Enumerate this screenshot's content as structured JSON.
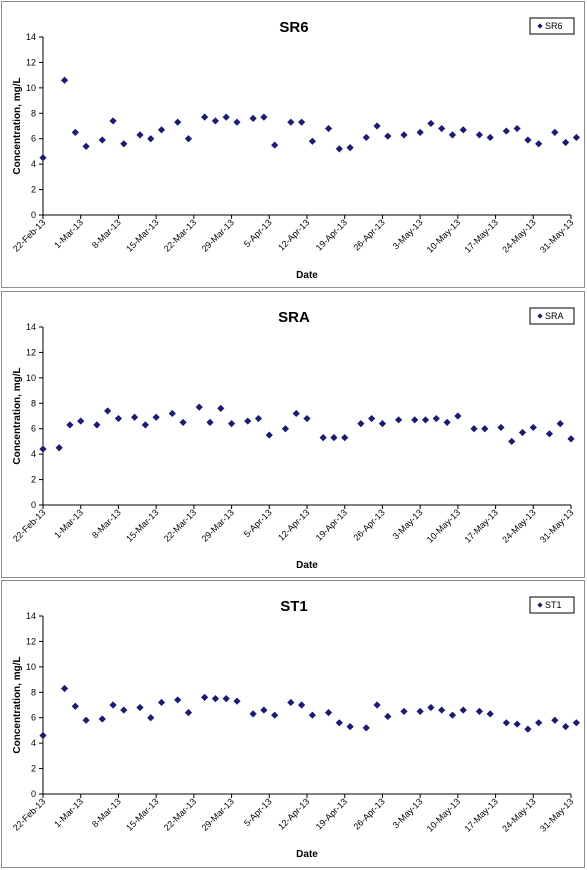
{
  "chart_data": [
    {
      "type": "scatter",
      "title": "SR6",
      "xlabel": "Date",
      "ylabel": "Concentration, mg/L",
      "ylim": [
        0,
        14
      ],
      "yticks": [
        "0",
        "2",
        "4",
        "6",
        "8",
        "10",
        "12",
        "14"
      ],
      "xlim": [
        "2013-02-22",
        "2013-05-31"
      ],
      "xticks": [
        "22-Feb-13",
        "1-Mar-13",
        "8-Mar-13",
        "15-Mar-13",
        "22-Mar-13",
        "29-Mar-13",
        "5-Apr-13",
        "12-Apr-13",
        "19-Apr-13",
        "26-Apr-13",
        "3-May-13",
        "10-May-13",
        "17-May-13",
        "24-May-13",
        "31-May-13"
      ],
      "grid": false,
      "legend_position": "top-right",
      "series": [
        {
          "name": "SR6",
          "color": "#1a1a7a",
          "marker": "diamond",
          "points": [
            [
              "2013-02-22",
              4.5
            ],
            [
              "2013-02-26",
              10.6
            ],
            [
              "2013-02-28",
              6.5
            ],
            [
              "2013-03-02",
              5.4
            ],
            [
              "2013-03-05",
              5.9
            ],
            [
              "2013-03-07",
              7.4
            ],
            [
              "2013-03-09",
              5.6
            ],
            [
              "2013-03-12",
              6.3
            ],
            [
              "2013-03-14",
              6.0
            ],
            [
              "2013-03-16",
              6.7
            ],
            [
              "2013-03-19",
              7.3
            ],
            [
              "2013-03-21",
              6.0
            ],
            [
              "2013-03-24",
              7.7
            ],
            [
              "2013-03-26",
              7.4
            ],
            [
              "2013-03-28",
              7.7
            ],
            [
              "2013-03-30",
              7.3
            ],
            [
              "2013-04-02",
              7.6
            ],
            [
              "2013-04-04",
              7.7
            ],
            [
              "2013-04-06",
              5.5
            ],
            [
              "2013-04-09",
              7.3
            ],
            [
              "2013-04-11",
              7.3
            ],
            [
              "2013-04-13",
              5.8
            ],
            [
              "2013-04-16",
              6.8
            ],
            [
              "2013-04-18",
              5.2
            ],
            [
              "2013-04-20",
              5.3
            ],
            [
              "2013-04-23",
              6.1
            ],
            [
              "2013-04-25",
              7.0
            ],
            [
              "2013-04-27",
              6.2
            ],
            [
              "2013-04-30",
              6.3
            ],
            [
              "2013-05-03",
              6.5
            ],
            [
              "2013-05-05",
              7.2
            ],
            [
              "2013-05-07",
              6.8
            ],
            [
              "2013-05-09",
              6.3
            ],
            [
              "2013-05-11",
              6.7
            ],
            [
              "2013-05-14",
              6.3
            ],
            [
              "2013-05-16",
              6.1
            ],
            [
              "2013-05-19",
              6.6
            ],
            [
              "2013-05-21",
              6.8
            ],
            [
              "2013-05-23",
              5.9
            ],
            [
              "2013-05-25",
              5.6
            ],
            [
              "2013-05-28",
              6.5
            ],
            [
              "2013-05-30",
              5.7
            ],
            [
              "2013-06-01",
              6.1
            ]
          ]
        }
      ]
    },
    {
      "type": "scatter",
      "title": "SRA",
      "xlabel": "Date",
      "ylabel": "Concentration, mg/L",
      "ylim": [
        0,
        14
      ],
      "yticks": [
        "0",
        "2",
        "4",
        "6",
        "8",
        "10",
        "12",
        "14"
      ],
      "xlim": [
        "2013-02-22",
        "2013-05-31"
      ],
      "xticks": [
        "22-Feb-13",
        "1-Mar-13",
        "8-Mar-13",
        "15-Mar-13",
        "22-Mar-13",
        "29-Mar-13",
        "5-Apr-13",
        "12-Apr-13",
        "19-Apr-13",
        "26-Apr-13",
        "3-May-13",
        "10-May-13",
        "17-May-13",
        "24-May-13",
        "31-May-13"
      ],
      "grid": false,
      "legend_position": "top-right",
      "series": [
        {
          "name": "SRA",
          "color": "#1a1a7a",
          "marker": "diamond",
          "points": [
            [
              "2013-02-22",
              4.4
            ],
            [
              "2013-02-25",
              4.5
            ],
            [
              "2013-02-27",
              6.3
            ],
            [
              "2013-03-01",
              6.6
            ],
            [
              "2013-03-04",
              6.3
            ],
            [
              "2013-03-06",
              7.4
            ],
            [
              "2013-03-08",
              6.8
            ],
            [
              "2013-03-11",
              6.9
            ],
            [
              "2013-03-13",
              6.3
            ],
            [
              "2013-03-15",
              6.9
            ],
            [
              "2013-03-18",
              7.2
            ],
            [
              "2013-03-20",
              6.5
            ],
            [
              "2013-03-23",
              7.7
            ],
            [
              "2013-03-25",
              6.5
            ],
            [
              "2013-03-27",
              7.6
            ],
            [
              "2013-03-29",
              6.4
            ],
            [
              "2013-04-01",
              6.6
            ],
            [
              "2013-04-03",
              6.8
            ],
            [
              "2013-04-05",
              5.5
            ],
            [
              "2013-04-08",
              6.0
            ],
            [
              "2013-04-10",
              7.2
            ],
            [
              "2013-04-12",
              6.8
            ],
            [
              "2013-04-15",
              5.3
            ],
            [
              "2013-04-17",
              5.3
            ],
            [
              "2013-04-19",
              5.3
            ],
            [
              "2013-04-22",
              6.4
            ],
            [
              "2013-04-24",
              6.8
            ],
            [
              "2013-04-26",
              6.4
            ],
            [
              "2013-04-29",
              6.7
            ],
            [
              "2013-05-02",
              6.7
            ],
            [
              "2013-05-04",
              6.7
            ],
            [
              "2013-05-06",
              6.8
            ],
            [
              "2013-05-08",
              6.5
            ],
            [
              "2013-05-10",
              7.0
            ],
            [
              "2013-05-13",
              6.0
            ],
            [
              "2013-05-15",
              6.0
            ],
            [
              "2013-05-18",
              6.1
            ],
            [
              "2013-05-20",
              5.0
            ],
            [
              "2013-05-22",
              5.7
            ],
            [
              "2013-05-24",
              6.1
            ],
            [
              "2013-05-27",
              5.6
            ],
            [
              "2013-05-29",
              6.4
            ],
            [
              "2013-05-31",
              5.2
            ]
          ]
        }
      ]
    },
    {
      "type": "scatter",
      "title": "ST1",
      "xlabel": "Date",
      "ylabel": "Concentration, mg/L",
      "ylim": [
        0,
        14
      ],
      "yticks": [
        "0",
        "2",
        "4",
        "6",
        "8",
        "10",
        "12",
        "14"
      ],
      "xlim": [
        "2013-02-22",
        "2013-05-31"
      ],
      "xticks": [
        "22-Feb-13",
        "1-Mar-13",
        "8-Mar-13",
        "15-Mar-13",
        "22-Mar-13",
        "29-Mar-13",
        "5-Apr-13",
        "12-Apr-13",
        "19-Apr-13",
        "26-Apr-13",
        "3-May-13",
        "10-May-13",
        "17-May-13",
        "24-May-13",
        "31-May-13"
      ],
      "grid": false,
      "legend_position": "top-right",
      "series": [
        {
          "name": "ST1",
          "color": "#1a1a7a",
          "marker": "diamond",
          "points": [
            [
              "2013-02-22",
              4.6
            ],
            [
              "2013-02-26",
              8.3
            ],
            [
              "2013-02-28",
              6.9
            ],
            [
              "2013-03-02",
              5.8
            ],
            [
              "2013-03-05",
              5.9
            ],
            [
              "2013-03-07",
              7.0
            ],
            [
              "2013-03-09",
              6.6
            ],
            [
              "2013-03-12",
              6.8
            ],
            [
              "2013-03-14",
              6.0
            ],
            [
              "2013-03-16",
              7.2
            ],
            [
              "2013-03-19",
              7.4
            ],
            [
              "2013-03-21",
              6.4
            ],
            [
              "2013-03-24",
              7.6
            ],
            [
              "2013-03-26",
              7.5
            ],
            [
              "2013-03-28",
              7.5
            ],
            [
              "2013-03-30",
              7.3
            ],
            [
              "2013-04-02",
              6.3
            ],
            [
              "2013-04-04",
              6.6
            ],
            [
              "2013-04-06",
              6.2
            ],
            [
              "2013-04-09",
              7.2
            ],
            [
              "2013-04-11",
              7.0
            ],
            [
              "2013-04-13",
              6.2
            ],
            [
              "2013-04-16",
              6.4
            ],
            [
              "2013-04-18",
              5.6
            ],
            [
              "2013-04-20",
              5.3
            ],
            [
              "2013-04-23",
              5.2
            ],
            [
              "2013-04-25",
              7.0
            ],
            [
              "2013-04-27",
              6.1
            ],
            [
              "2013-04-30",
              6.5
            ],
            [
              "2013-05-03",
              6.5
            ],
            [
              "2013-05-05",
              6.8
            ],
            [
              "2013-05-07",
              6.6
            ],
            [
              "2013-05-09",
              6.2
            ],
            [
              "2013-05-11",
              6.6
            ],
            [
              "2013-05-14",
              6.5
            ],
            [
              "2013-05-16",
              6.3
            ],
            [
              "2013-05-19",
              5.6
            ],
            [
              "2013-05-21",
              5.5
            ],
            [
              "2013-05-23",
              5.1
            ],
            [
              "2013-05-25",
              5.6
            ],
            [
              "2013-05-28",
              5.8
            ],
            [
              "2013-05-30",
              5.3
            ],
            [
              "2013-06-01",
              5.6
            ]
          ]
        }
      ]
    }
  ]
}
